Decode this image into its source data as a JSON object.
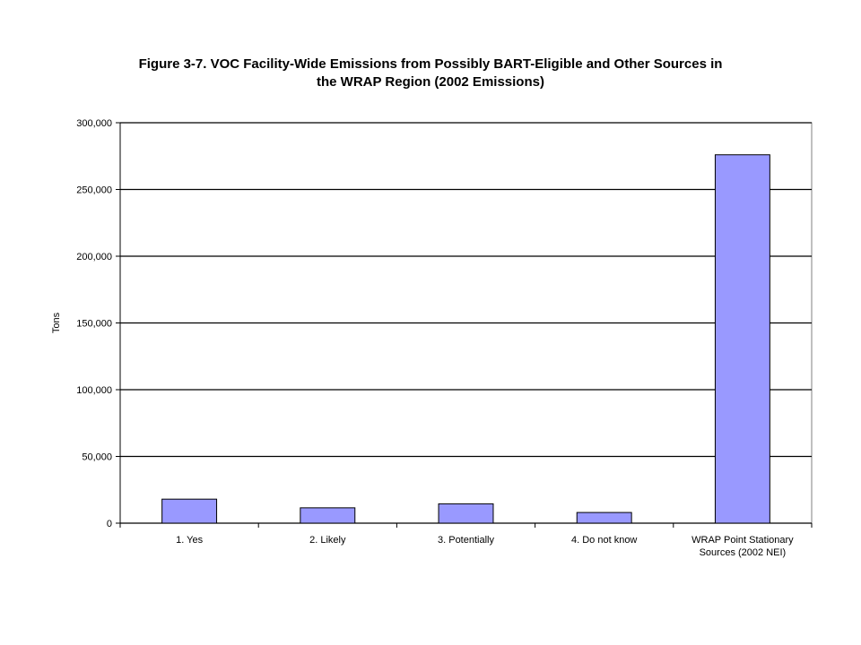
{
  "chart_data": {
    "type": "bar",
    "title_lines": [
      "Figure 3-7.  VOC Facility-Wide Emissions from Possibly BART-Eligible and Other Sources in",
      "the WRAP Region (2002 Emissions)"
    ],
    "xlabel": "",
    "ylabel": "Tons",
    "categories": [
      [
        "1. Yes"
      ],
      [
        "2. Likely"
      ],
      [
        "3. Potentially"
      ],
      [
        "4. Do not know"
      ],
      [
        "WRAP Point Stationary",
        "Sources (2002 NEI)"
      ]
    ],
    "values": [
      18000,
      11500,
      14500,
      8000,
      276000
    ],
    "ylim": [
      0,
      300000
    ],
    "yticks": [
      0,
      50000,
      100000,
      150000,
      200000,
      250000,
      300000
    ],
    "ytick_labels": [
      "0",
      "50,000",
      "100,000",
      "150,000",
      "200,000",
      "250,000",
      "300,000"
    ],
    "grid": "horizontal",
    "legend": "none",
    "colors": {
      "bar_fill": "#9999ff",
      "bar_stroke": "#000000",
      "gridline": "#000000",
      "plot_border": "#808080"
    }
  }
}
